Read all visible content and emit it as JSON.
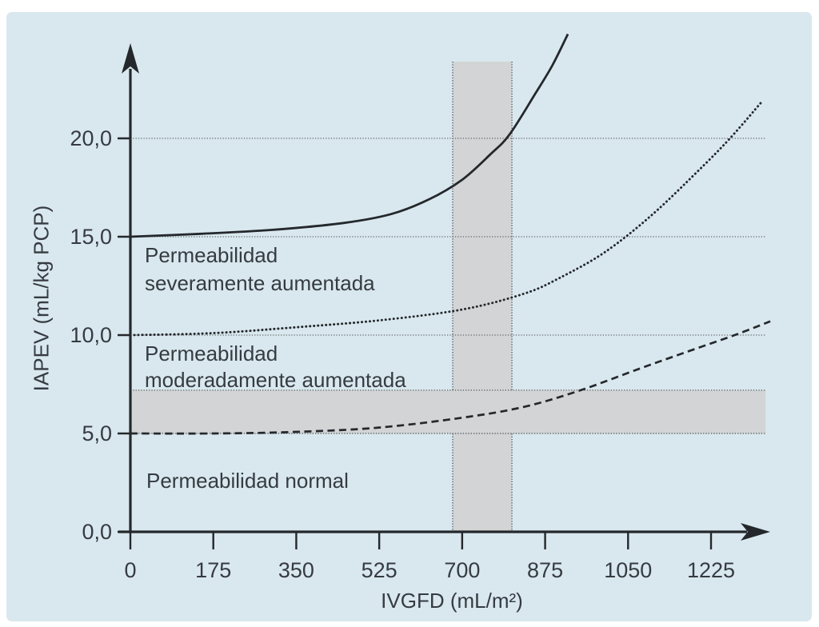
{
  "figure": {
    "xlabel": "IVGFD (mL/m²)",
    "ylabel": "IAPEV (mL/kg PCP)"
  },
  "chart_data": {
    "type": "line",
    "title": "",
    "xlabel": "IVGFD (mL/m²)",
    "ylabel": "IAPEV (mL/kg PCP)",
    "xlim": [
      0,
      1350
    ],
    "ylim": [
      0,
      25.5
    ],
    "x_ticks": {
      "values": [
        0,
        175,
        350,
        525,
        700,
        875,
        1050,
        1225
      ],
      "labels": [
        "0",
        "175",
        "350",
        "525",
        "700",
        "875",
        "1050",
        "1225"
      ]
    },
    "y_ticks": {
      "values": [
        0,
        5,
        10,
        15,
        20
      ],
      "labels": [
        "0,0",
        "5,0",
        "10,0",
        "15,0",
        "20,0"
      ]
    },
    "grid": {
      "y_values": [
        5,
        10,
        15,
        20
      ],
      "style": "dotted",
      "extent_x": [
        0,
        1340
      ]
    },
    "legend": "none",
    "reference_bands": [
      {
        "id": "vertical-normal-range",
        "orientation": "vertical",
        "from": 680,
        "to": 805,
        "y_span": [
          0,
          23.9
        ]
      },
      {
        "id": "horizontal-normal-range",
        "orientation": "horizontal",
        "from": 5.0,
        "to": 7.2,
        "x_span": [
          0,
          1340
        ]
      }
    ],
    "series": [
      {
        "name": "Permeabilidad severamente aumentada",
        "line_style": "solid",
        "points": [
          [
            0,
            15.0
          ],
          [
            150,
            15.15
          ],
          [
            300,
            15.35
          ],
          [
            450,
            15.7
          ],
          [
            550,
            16.15
          ],
          [
            630,
            16.9
          ],
          [
            700,
            17.9
          ],
          [
            760,
            19.2
          ],
          [
            800,
            20.2
          ],
          [
            855,
            22.3
          ],
          [
            890,
            23.7
          ],
          [
            923,
            25.3
          ]
        ]
      },
      {
        "name": "Permeabilidad moderadamente aumentada",
        "line_style": "dotted",
        "points": [
          [
            0,
            10.0
          ],
          [
            175,
            10.1
          ],
          [
            350,
            10.4
          ],
          [
            525,
            10.75
          ],
          [
            700,
            11.3
          ],
          [
            830,
            12.1
          ],
          [
            905,
            12.9
          ],
          [
            1000,
            14.2
          ],
          [
            1100,
            16.1
          ],
          [
            1200,
            18.4
          ],
          [
            1265,
            20.0
          ],
          [
            1330,
            21.8
          ]
        ]
      },
      {
        "name": "Permeabilidad normal",
        "line_style": "dashed",
        "points": [
          [
            0,
            5.0
          ],
          [
            175,
            5.0
          ],
          [
            350,
            5.08
          ],
          [
            525,
            5.3
          ],
          [
            700,
            5.8
          ],
          [
            830,
            6.35
          ],
          [
            950,
            7.2
          ],
          [
            1075,
            8.3
          ],
          [
            1180,
            9.2
          ],
          [
            1275,
            10.0
          ],
          [
            1350,
            10.7
          ]
        ]
      }
    ],
    "annotations": [
      {
        "lines": [
          "Permeabilidad",
          "severamente aumentada"
        ]
      },
      {
        "lines": [
          "Permeabilidad",
          "moderadamente aumentada"
        ]
      },
      {
        "lines": [
          "Permeabilidad normal"
        ]
      }
    ]
  },
  "colors": {
    "page_background": "#ffffff",
    "panel_background": "#d9e8ee",
    "curve": "#24282c",
    "axis": "#24282c",
    "text": "#353b41",
    "gridline": "#666b70",
    "band_fill": "#d2d4d5",
    "band_edge": "#555a5e"
  }
}
